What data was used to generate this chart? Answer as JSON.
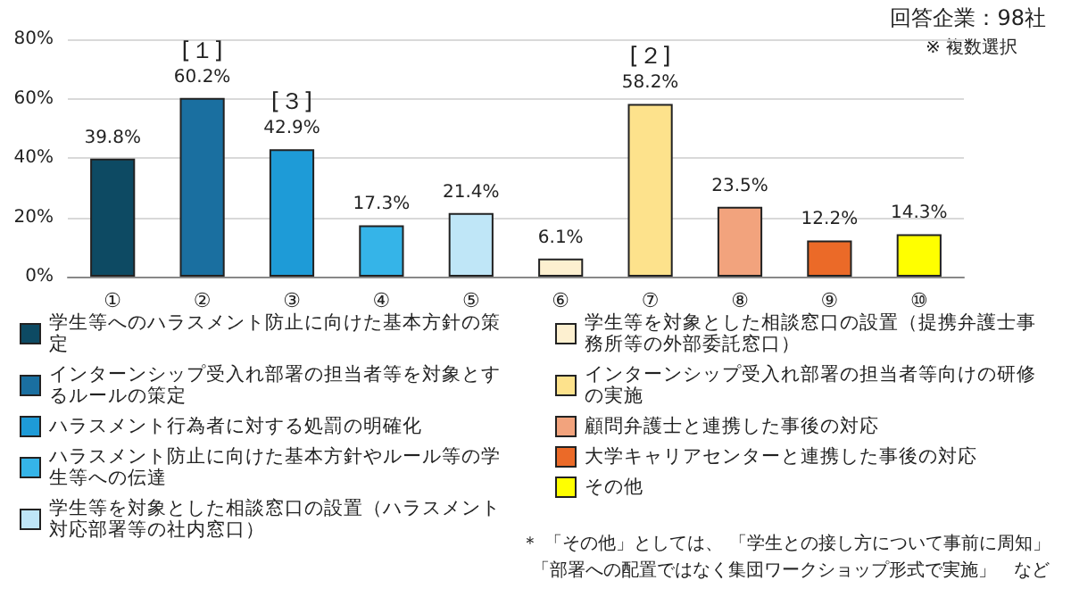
{
  "chart_data": {
    "type": "bar",
    "stacked": true,
    "categories": [
      "①",
      "②",
      "③",
      "④",
      "⑤",
      "⑥",
      "⑦",
      "⑧",
      "⑨",
      "⑩"
    ],
    "series": [
      {
        "name": "学生等へのハラスメント防止に向けた基本方針の策定",
        "color": "#0d4a63",
        "values": [
          39.8,
          null,
          null,
          null,
          null,
          null,
          null,
          null,
          null,
          null
        ],
        "value_labels": [
          "39.8%",
          null,
          null,
          null,
          null,
          null,
          null,
          null,
          null,
          null
        ]
      },
      {
        "name": "インターンシップ受入れ部署の担当者等を対象とするルールの策定",
        "color": "#1a6fa0",
        "values": [
          null,
          60.2,
          null,
          null,
          null,
          null,
          null,
          null,
          null,
          null
        ],
        "value_labels": [
          null,
          "60.2%",
          null,
          null,
          null,
          null,
          null,
          null,
          null,
          null
        ]
      },
      {
        "name": "ハラスメント行為者に対する処罰の明確化",
        "color": "#1e9bd7",
        "values": [
          null,
          null,
          42.9,
          null,
          null,
          null,
          null,
          null,
          null,
          null
        ],
        "value_labels": [
          null,
          null,
          "42.9%",
          null,
          null,
          null,
          null,
          null,
          null,
          null
        ]
      },
      {
        "name": "ハラスメント防止に向けた基本方針やルール等の学生等への伝達",
        "color": "#35b4e8",
        "values": [
          null,
          null,
          null,
          17.3,
          null,
          null,
          null,
          null,
          null,
          null
        ],
        "value_labels": [
          null,
          null,
          null,
          "17.3%",
          null,
          null,
          null,
          null,
          null,
          null
        ]
      },
      {
        "name": "学生等を対象とした相談窓口の設置（ハラスメント対応部署等の社内窓口）",
        "color": "#bfe6f7",
        "values": [
          null,
          null,
          null,
          null,
          21.4,
          null,
          null,
          null,
          null,
          null
        ],
        "value_labels": [
          null,
          null,
          null,
          null,
          "21.4%",
          null,
          null,
          null,
          null,
          null
        ]
      },
      {
        "name": "学生等を対象とした相談窓口の設置（提携弁護士事務所等の外部委託窓口）",
        "color": "#fdf0d0",
        "values": [
          null,
          null,
          null,
          null,
          null,
          6.1,
          null,
          null,
          null,
          null
        ],
        "value_labels": [
          null,
          null,
          null,
          null,
          null,
          "6.1%",
          null,
          null,
          null,
          null
        ]
      },
      {
        "name": "インターンシップ受入れ部署の担当者等向けの研修の実施",
        "color": "#fde28c",
        "values": [
          null,
          null,
          null,
          null,
          null,
          null,
          58.2,
          null,
          null,
          null
        ],
        "value_labels": [
          null,
          null,
          null,
          null,
          null,
          null,
          "58.2%",
          null,
          null,
          null
        ]
      },
      {
        "name": "顧問弁護士と連携した事後の対応",
        "color": "#f2a37d",
        "values": [
          null,
          null,
          null,
          null,
          null,
          null,
          null,
          23.5,
          null,
          null
        ],
        "value_labels": [
          null,
          null,
          null,
          null,
          null,
          null,
          null,
          "23.5%",
          null,
          null
        ]
      },
      {
        "name": "大学キャリアセンターと連携した事後の対応",
        "color": "#eb6a28",
        "values": [
          null,
          null,
          null,
          null,
          null,
          null,
          null,
          null,
          12.2,
          null
        ],
        "value_labels": [
          null,
          null,
          null,
          null,
          null,
          null,
          null,
          null,
          "12.2%",
          null
        ]
      },
      {
        "name": "その他",
        "color": "#ffff00",
        "values": [
          null,
          null,
          null,
          null,
          null,
          null,
          null,
          null,
          null,
          14.3
        ],
        "value_labels": [
          null,
          null,
          null,
          null,
          null,
          null,
          null,
          null,
          null,
          "14.3%"
        ]
      }
    ],
    "ylim": [
      0,
      80
    ],
    "yticks": [
      {
        "value": 0,
        "label": "0%"
      },
      {
        "value": 20,
        "label": "20%"
      },
      {
        "value": 40,
        "label": "40%"
      },
      {
        "value": 60,
        "label": "60%"
      },
      {
        "value": 80,
        "label": "80%"
      }
    ],
    "grid": "y",
    "legend": "bottom",
    "annotations": [
      "回答企業：98社",
      "※ 複数選択",
      "＊ 「その他」としては、 「学生との接し方について事前に周知」",
      "「部署への配置ではなく集団ワークショップ形式で実施」　など",
      {
        "text": "[１]",
        "x": "②",
        "y": 60.2
      },
      {
        "text": "[２]",
        "x": "⑦",
        "y": 58.2
      },
      {
        "text": "[３]",
        "x": "③",
        "y": 42.9
      }
    ]
  }
}
